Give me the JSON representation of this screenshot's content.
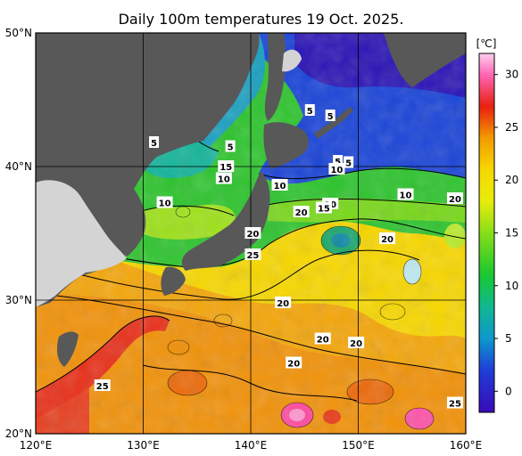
{
  "title": "Daily 100m temperatures 19 Oct. 2025.",
  "map": {
    "lat_range": [
      20,
      50
    ],
    "lon_range": [
      120,
      160
    ],
    "lat_ticks": [
      {
        "value": 50,
        "label": "50°N"
      },
      {
        "value": 40,
        "label": "40°N"
      },
      {
        "value": 30,
        "label": "30°N"
      },
      {
        "value": 20,
        "label": "20°N"
      }
    ],
    "lon_ticks": [
      {
        "value": 120,
        "label": "120°E"
      },
      {
        "value": 130,
        "label": "130°E"
      },
      {
        "value": 140,
        "label": "140°E"
      },
      {
        "value": 150,
        "label": "150°E"
      },
      {
        "value": 160,
        "label": "160°E"
      }
    ],
    "grid": true,
    "contour_labels": [
      {
        "lon": 145.5,
        "lat": 44.2,
        "text": "5"
      },
      {
        "lon": 147.4,
        "lat": 43.8,
        "text": "5"
      },
      {
        "lon": 131.0,
        "lat": 41.8,
        "text": "5"
      },
      {
        "lon": 138.1,
        "lat": 41.5,
        "text": "5"
      },
      {
        "lon": 137.7,
        "lat": 40.0,
        "text": "15"
      },
      {
        "lon": 137.5,
        "lat": 39.1,
        "text": "10"
      },
      {
        "lon": 148.1,
        "lat": 40.4,
        "text": "5"
      },
      {
        "lon": 149.1,
        "lat": 40.3,
        "text": "5"
      },
      {
        "lon": 148.0,
        "lat": 39.8,
        "text": "10"
      },
      {
        "lon": 142.7,
        "lat": 38.6,
        "text": "10"
      },
      {
        "lon": 132.0,
        "lat": 37.3,
        "text": "10"
      },
      {
        "lon": 154.4,
        "lat": 37.9,
        "text": "10"
      },
      {
        "lon": 159.0,
        "lat": 37.6,
        "text": "20"
      },
      {
        "lon": 147.4,
        "lat": 37.2,
        "text": "20"
      },
      {
        "lon": 146.8,
        "lat": 36.9,
        "text": "15"
      },
      {
        "lon": 144.7,
        "lat": 36.6,
        "text": "20"
      },
      {
        "lon": 140.2,
        "lat": 35.0,
        "text": "20"
      },
      {
        "lon": 152.7,
        "lat": 34.6,
        "text": "20"
      },
      {
        "lon": 140.2,
        "lat": 33.4,
        "text": "25"
      },
      {
        "lon": 143.0,
        "lat": 29.8,
        "text": "20"
      },
      {
        "lon": 146.7,
        "lat": 27.1,
        "text": "20"
      },
      {
        "lon": 149.8,
        "lat": 26.8,
        "text": "20"
      },
      {
        "lon": 144.0,
        "lat": 25.3,
        "text": "20"
      },
      {
        "lon": 126.2,
        "lat": 23.6,
        "text": "25"
      },
      {
        "lon": 159.0,
        "lat": 22.3,
        "text": "25"
      }
    ]
  },
  "colorbar": {
    "unit": "[℃]",
    "range": [
      -2,
      32
    ],
    "ticks": [
      {
        "value": 30,
        "label": "30"
      },
      {
        "value": 25,
        "label": "25"
      },
      {
        "value": 20,
        "label": "20"
      },
      {
        "value": 15,
        "label": "15"
      },
      {
        "value": 10,
        "label": "10"
      },
      {
        "value": 5,
        "label": "5"
      },
      {
        "value": 0,
        "label": "0"
      }
    ],
    "stops": [
      {
        "value": -2,
        "color": "#3a0ab8"
      },
      {
        "value": 2,
        "color": "#1e3ed8"
      },
      {
        "value": 5,
        "color": "#0e98cc"
      },
      {
        "value": 8,
        "color": "#10b890"
      },
      {
        "value": 11,
        "color": "#18c830"
      },
      {
        "value": 15,
        "color": "#88de18"
      },
      {
        "value": 18,
        "color": "#e8ec0c"
      },
      {
        "value": 21,
        "color": "#f7d700"
      },
      {
        "value": 24,
        "color": "#f39a00"
      },
      {
        "value": 27,
        "color": "#e82010"
      },
      {
        "value": 30,
        "color": "#ff66b6"
      },
      {
        "value": 32,
        "color": "#ffd0ee"
      }
    ]
  },
  "colors": {
    "land_dark": "#585858",
    "land_light": "#d4d4d4",
    "frame": "#000000"
  }
}
